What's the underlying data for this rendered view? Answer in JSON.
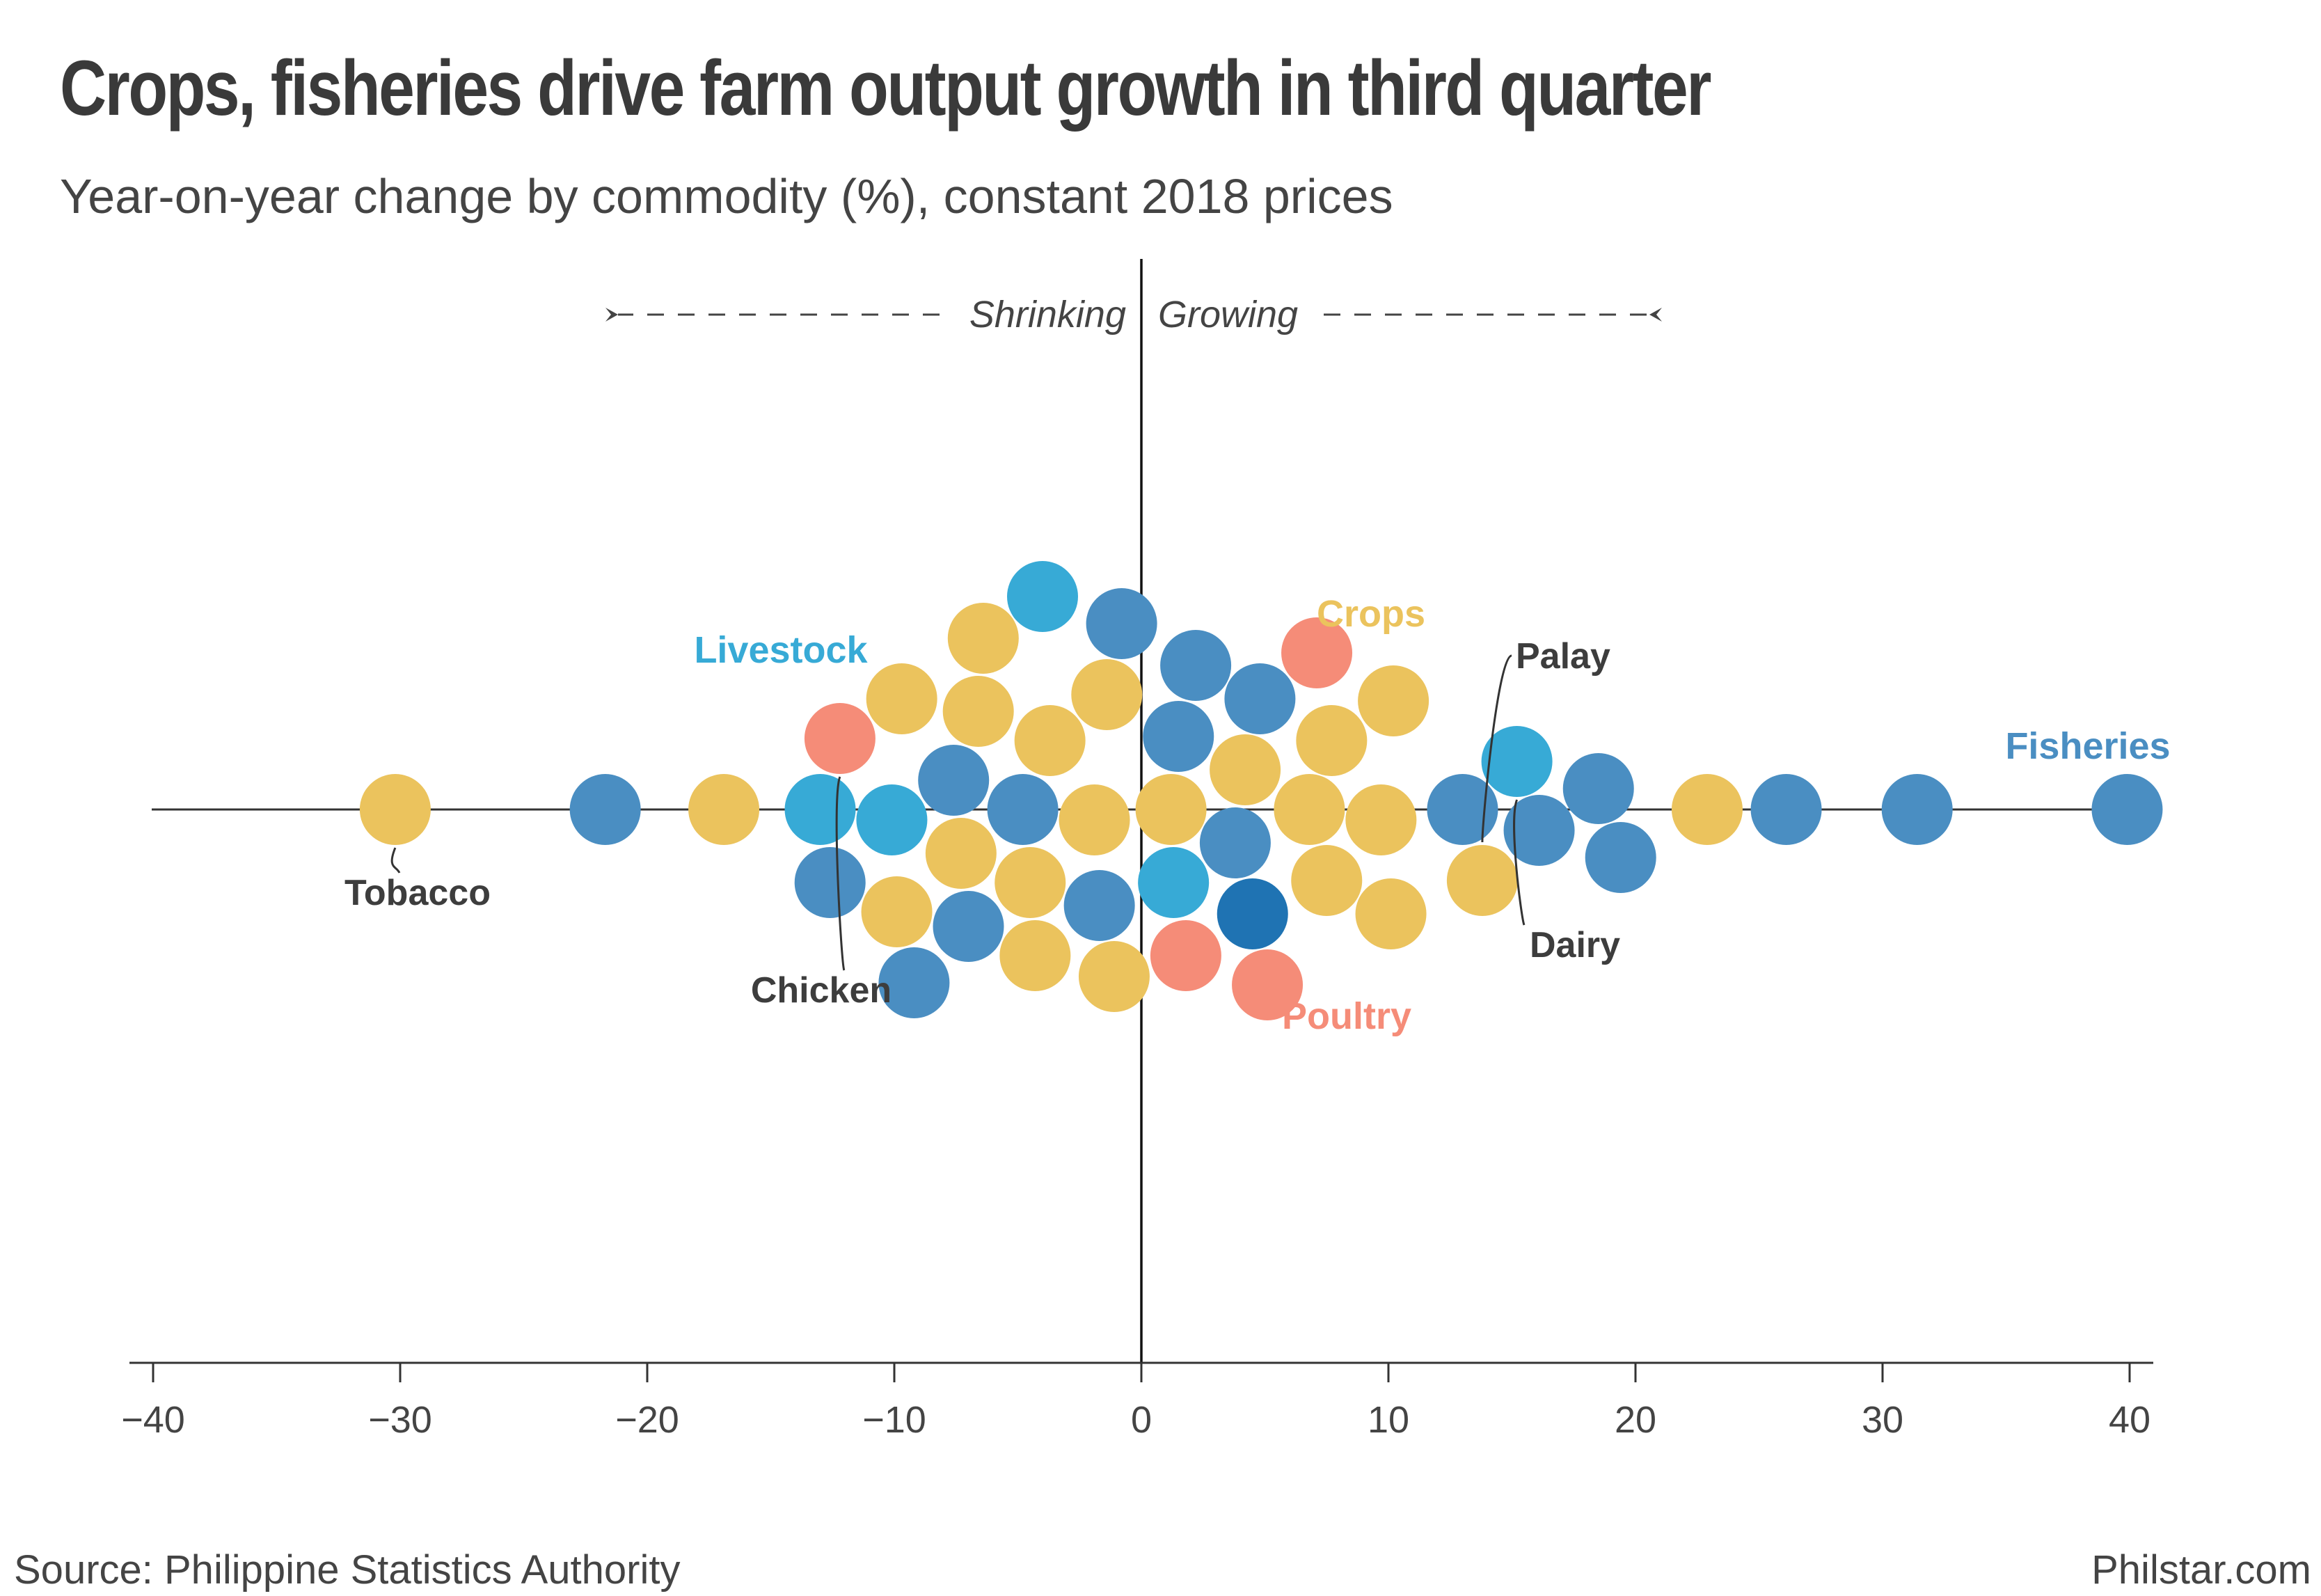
{
  "header": {
    "title": "Crops, fisheries drive farm output growth in third quarter",
    "subtitle": "Year-on-year change by commodity (%), constant 2018 prices"
  },
  "footer": {
    "source": "Source: Philippine Statistics Authority",
    "brand": "Philstar.com"
  },
  "colors": {
    "crops": "#ebc35d",
    "fisheries": "#4a8ec2",
    "fisheries_highlight": "#1f73b3",
    "livestock": "#37aad6",
    "poultry": "#f58c78",
    "axis": "#333333",
    "text": "#3d3d3d"
  },
  "chart_data": {
    "type": "scatter",
    "subtype": "beeswarm",
    "xlabel": "",
    "ylabel": "",
    "xlim": [
      -40,
      40
    ],
    "x_ticks": [
      -40,
      -30,
      -20,
      -10,
      0,
      10,
      20,
      30,
      40
    ],
    "x_tick_labels": [
      "−40",
      "−30",
      "−20",
      "−10",
      "0",
      "10",
      "20",
      "30",
      "40"
    ],
    "direction_labels": {
      "left": "Shrinking",
      "right": "Growing"
    },
    "group_labels": [
      {
        "text": "Crops",
        "group": "crops"
      },
      {
        "text": "Livestock",
        "group": "livestock"
      },
      {
        "text": "Fisheries",
        "group": "fisheries"
      },
      {
        "text": "Poultry",
        "group": "poultry"
      }
    ],
    "item_labels": [
      {
        "text": "Tobacco",
        "x": -30.2
      },
      {
        "text": "Chicken",
        "x": -12.2
      },
      {
        "text": "Palay",
        "x": 13.8
      },
      {
        "text": "Dairy",
        "x": 15.2
      }
    ],
    "series": [
      {
        "name": "Crops",
        "group": "crops",
        "x": [
          -30.2,
          -16.9,
          -4.5,
          -7.3,
          -1.4,
          -4.3,
          -9.9,
          -1.1,
          -9.7,
          -6.6,
          -3.7,
          -6.4,
          -1.9,
          1.2,
          4.2,
          6.8,
          9.7,
          13.8,
          10.1,
          7.5,
          10.2,
          7.7,
          22.9
        ]
      },
      {
        "name": "Fisheries",
        "group": "fisheries",
        "x": [
          -21.7,
          -7.6,
          -4.8,
          -1.7,
          -12.6,
          -7.0,
          -9.2,
          -0.8,
          1.5,
          3.8,
          4.8,
          2.2,
          13.0,
          16.1,
          19.4,
          18.5,
          26.1,
          31.4,
          39.9
        ]
      },
      {
        "name": "Fisheries (highlight)",
        "group": "fisheries_highlight",
        "x": [
          4.5
        ]
      },
      {
        "name": "Livestock",
        "group": "livestock",
        "x": [
          -10.1,
          -13.0,
          -4.0,
          1.3,
          15.2
        ]
      },
      {
        "name": "Poultry",
        "group": "poultry",
        "x": [
          -12.2,
          7.1,
          1.8,
          5.1
        ]
      }
    ]
  }
}
